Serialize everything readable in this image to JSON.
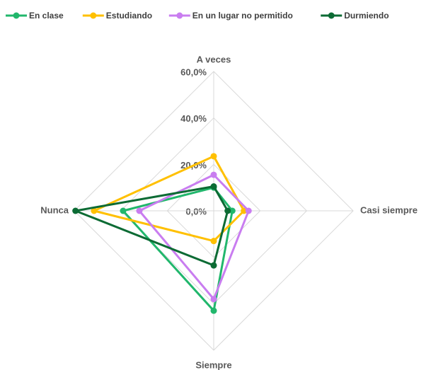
{
  "chart_data": {
    "type": "radar",
    "categories": [
      "A veces",
      "Casi siempre",
      "Siempre",
      "Nunca"
    ],
    "series": [
      {
        "name": "En clase",
        "color": "#21b76c",
        "values": [
          10,
          8,
          43,
          39
        ]
      },
      {
        "name": "Estudiando",
        "color": "#ffc000",
        "values": [
          23.5,
          13,
          13,
          51.5
        ]
      },
      {
        "name": "En un lugar no permitido",
        "color": "#c97df0",
        "values": [
          15.5,
          15,
          38,
          32
        ]
      },
      {
        "name": "Durmiendo",
        "color": "#0c6b34",
        "values": [
          10.5,
          6,
          23.5,
          59.5
        ]
      }
    ],
    "ylim": [
      0,
      60
    ],
    "yticks": [
      {
        "value": 0,
        "label": "0,0%"
      },
      {
        "value": 20,
        "label": "20,0%"
      },
      {
        "value": 40,
        "label": "40,0%"
      },
      {
        "value": 60,
        "label": "60,0%"
      }
    ],
    "grid": true,
    "legend": "top"
  }
}
